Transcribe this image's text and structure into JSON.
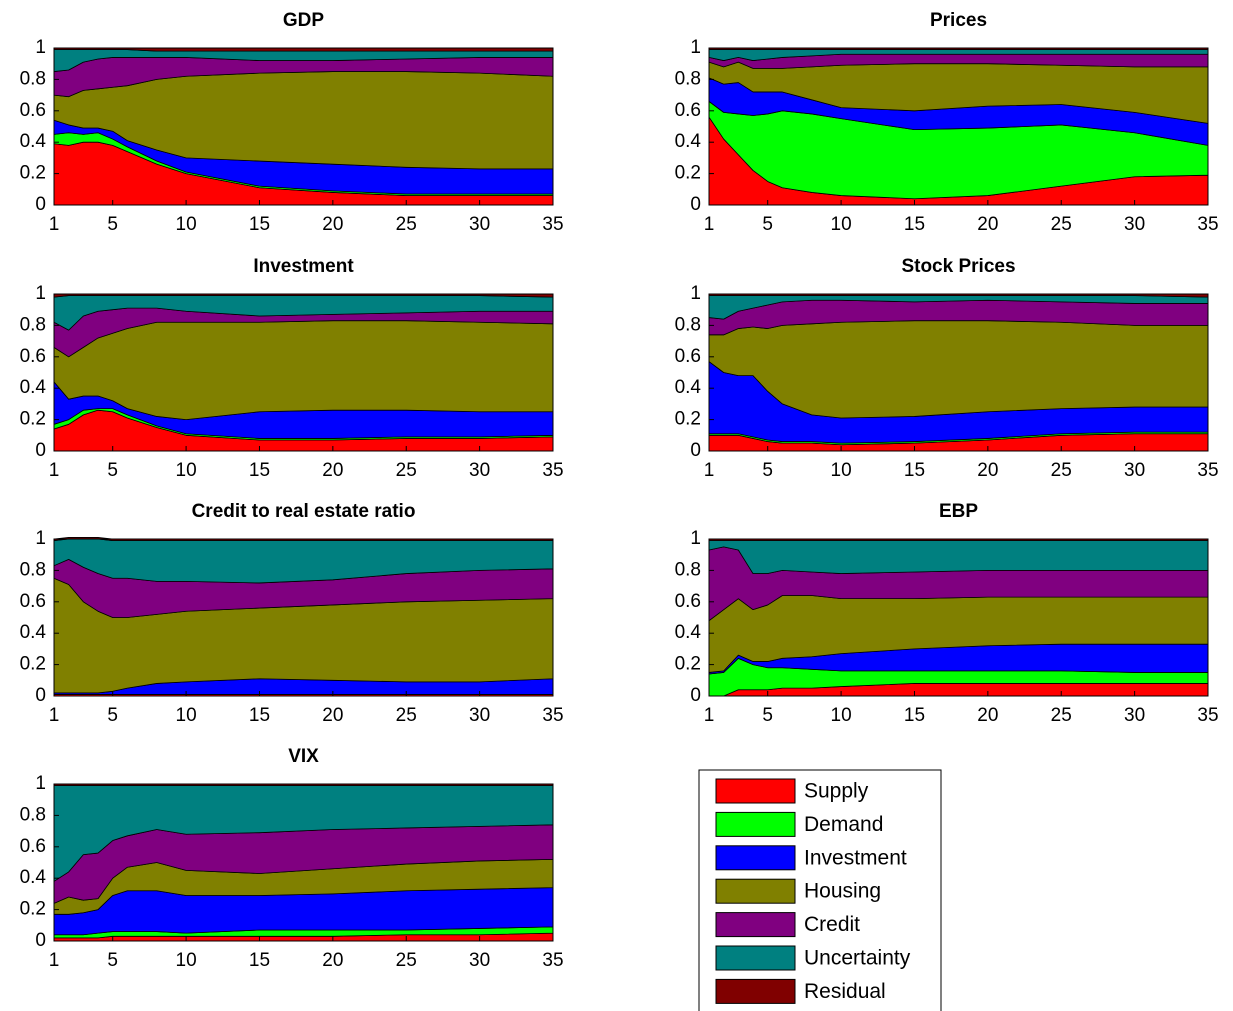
{
  "chart_data": [
    {
      "type": "area",
      "title": "GDP",
      "x": [
        1,
        2,
        3,
        4,
        5,
        6,
        8,
        10,
        15,
        20,
        25,
        30,
        35
      ],
      "xlim": [
        1,
        35
      ],
      "ylim": [
        0,
        1
      ],
      "xticks": [
        1,
        5,
        10,
        15,
        20,
        25,
        30,
        35
      ],
      "yticks": [
        0,
        0.2,
        0.4,
        0.6,
        0.8,
        1
      ],
      "series": [
        {
          "values": [
            0.39,
            0.38,
            0.4,
            0.4,
            0.38,
            0.34,
            0.26,
            0.2,
            0.11,
            0.08,
            0.06,
            0.06,
            0.06
          ]
        },
        {
          "values": [
            0.06,
            0.08,
            0.05,
            0.06,
            0.04,
            0.03,
            0.02,
            0.01,
            0.01,
            0.01,
            0.01,
            0.01,
            0.01
          ]
        },
        {
          "values": [
            0.09,
            0.05,
            0.04,
            0.03,
            0.05,
            0.04,
            0.07,
            0.09,
            0.16,
            0.17,
            0.17,
            0.16,
            0.16
          ]
        },
        {
          "values": [
            0.16,
            0.18,
            0.24,
            0.25,
            0.28,
            0.35,
            0.45,
            0.52,
            0.56,
            0.59,
            0.61,
            0.61,
            0.59
          ]
        },
        {
          "values": [
            0.15,
            0.17,
            0.18,
            0.19,
            0.19,
            0.18,
            0.14,
            0.12,
            0.08,
            0.07,
            0.08,
            0.1,
            0.12
          ]
        },
        {
          "values": [
            0.14,
            0.13,
            0.08,
            0.06,
            0.05,
            0.05,
            0.04,
            0.04,
            0.06,
            0.06,
            0.05,
            0.04,
            0.04
          ]
        },
        {
          "values": [
            0.01,
            0.01,
            0.01,
            0.01,
            0.01,
            0.01,
            0.02,
            0.02,
            0.02,
            0.02,
            0.02,
            0.02,
            0.02
          ]
        }
      ]
    },
    {
      "type": "area",
      "title": "Prices",
      "x": [
        1,
        2,
        3,
        4,
        5,
        6,
        8,
        10,
        15,
        20,
        25,
        30,
        35
      ],
      "xlim": [
        1,
        35
      ],
      "ylim": [
        0,
        1
      ],
      "xticks": [
        1,
        5,
        10,
        15,
        20,
        25,
        30,
        35
      ],
      "yticks": [
        0,
        0.2,
        0.4,
        0.6,
        0.8,
        1
      ],
      "series": [
        {
          "values": [
            0.56,
            0.42,
            0.32,
            0.22,
            0.15,
            0.11,
            0.08,
            0.06,
            0.04,
            0.06,
            0.12,
            0.18,
            0.19
          ]
        },
        {
          "values": [
            0.1,
            0.17,
            0.26,
            0.35,
            0.43,
            0.49,
            0.5,
            0.49,
            0.44,
            0.43,
            0.39,
            0.28,
            0.19
          ]
        },
        {
          "values": [
            0.15,
            0.18,
            0.2,
            0.15,
            0.14,
            0.12,
            0.09,
            0.07,
            0.12,
            0.14,
            0.13,
            0.13,
            0.14
          ]
        },
        {
          "values": [
            0.1,
            0.11,
            0.13,
            0.15,
            0.15,
            0.15,
            0.21,
            0.27,
            0.3,
            0.27,
            0.25,
            0.29,
            0.36
          ]
        },
        {
          "values": [
            0.03,
            0.04,
            0.03,
            0.05,
            0.06,
            0.07,
            0.07,
            0.07,
            0.06,
            0.06,
            0.07,
            0.08,
            0.08
          ]
        },
        {
          "values": [
            0.05,
            0.07,
            0.05,
            0.07,
            0.06,
            0.05,
            0.04,
            0.03,
            0.03,
            0.03,
            0.03,
            0.03,
            0.03
          ]
        },
        {
          "values": [
            0.01,
            0.01,
            0.01,
            0.01,
            0.01,
            0.01,
            0.01,
            0.01,
            0.01,
            0.01,
            0.01,
            0.01,
            0.01
          ]
        }
      ]
    },
    {
      "type": "area",
      "title": "Investment",
      "x": [
        1,
        2,
        3,
        4,
        5,
        6,
        8,
        10,
        15,
        20,
        25,
        30,
        35
      ],
      "xlim": [
        1,
        35
      ],
      "ylim": [
        0,
        1
      ],
      "xticks": [
        1,
        5,
        10,
        15,
        20,
        25,
        30,
        35
      ],
      "yticks": [
        0,
        0.2,
        0.4,
        0.6,
        0.8,
        1
      ],
      "series": [
        {
          "values": [
            0.14,
            0.17,
            0.23,
            0.26,
            0.25,
            0.21,
            0.15,
            0.1,
            0.07,
            0.07,
            0.08,
            0.08,
            0.09
          ]
        },
        {
          "values": [
            0.03,
            0.03,
            0.03,
            0.01,
            0.02,
            0.02,
            0.01,
            0.01,
            0.01,
            0.01,
            0.01,
            0.01,
            0.01
          ]
        },
        {
          "values": [
            0.27,
            0.13,
            0.09,
            0.08,
            0.05,
            0.04,
            0.06,
            0.09,
            0.17,
            0.18,
            0.17,
            0.16,
            0.15
          ]
        },
        {
          "values": [
            0.22,
            0.27,
            0.31,
            0.37,
            0.43,
            0.51,
            0.6,
            0.62,
            0.57,
            0.57,
            0.57,
            0.57,
            0.56
          ]
        },
        {
          "values": [
            0.16,
            0.17,
            0.2,
            0.17,
            0.15,
            0.13,
            0.09,
            0.07,
            0.04,
            0.04,
            0.05,
            0.07,
            0.08
          ]
        },
        {
          "values": [
            0.16,
            0.22,
            0.13,
            0.1,
            0.09,
            0.08,
            0.08,
            0.1,
            0.13,
            0.12,
            0.11,
            0.1,
            0.09
          ]
        },
        {
          "values": [
            0.02,
            0.01,
            0.01,
            0.01,
            0.01,
            0.01,
            0.01,
            0.01,
            0.01,
            0.01,
            0.01,
            0.01,
            0.02
          ]
        }
      ]
    },
    {
      "type": "area",
      "title": "Stock Prices",
      "x": [
        1,
        2,
        3,
        4,
        5,
        6,
        8,
        10,
        15,
        20,
        25,
        30,
        35
      ],
      "xlim": [
        1,
        35
      ],
      "ylim": [
        0,
        1
      ],
      "xticks": [
        1,
        5,
        10,
        15,
        20,
        25,
        30,
        35
      ],
      "yticks": [
        0,
        0.2,
        0.4,
        0.6,
        0.8,
        1
      ],
      "series": [
        {
          "values": [
            0.1,
            0.1,
            0.1,
            0.08,
            0.06,
            0.05,
            0.05,
            0.04,
            0.05,
            0.07,
            0.1,
            0.11,
            0.11
          ]
        },
        {
          "values": [
            0.01,
            0.01,
            0.01,
            0.01,
            0.01,
            0.01,
            0.01,
            0.01,
            0.01,
            0.01,
            0.01,
            0.01,
            0.01
          ]
        },
        {
          "values": [
            0.46,
            0.39,
            0.37,
            0.39,
            0.31,
            0.24,
            0.17,
            0.16,
            0.16,
            0.17,
            0.16,
            0.16,
            0.16
          ]
        },
        {
          "values": [
            0.17,
            0.24,
            0.3,
            0.31,
            0.4,
            0.5,
            0.58,
            0.61,
            0.61,
            0.58,
            0.55,
            0.52,
            0.52
          ]
        },
        {
          "values": [
            0.11,
            0.1,
            0.11,
            0.12,
            0.15,
            0.15,
            0.15,
            0.14,
            0.12,
            0.13,
            0.13,
            0.14,
            0.14
          ]
        },
        {
          "values": [
            0.14,
            0.15,
            0.1,
            0.08,
            0.06,
            0.04,
            0.03,
            0.03,
            0.04,
            0.03,
            0.04,
            0.05,
            0.04
          ]
        },
        {
          "values": [
            0.01,
            0.01,
            0.01,
            0.01,
            0.01,
            0.01,
            0.01,
            0.01,
            0.01,
            0.01,
            0.01,
            0.01,
            0.02
          ]
        }
      ]
    },
    {
      "type": "area",
      "title": "Credit to real estate ratio",
      "x": [
        1,
        2,
        3,
        4,
        5,
        6,
        8,
        10,
        15,
        20,
        25,
        30,
        35
      ],
      "xlim": [
        1,
        35
      ],
      "ylim": [
        0,
        1
      ],
      "xticks": [
        1,
        5,
        10,
        15,
        20,
        25,
        30,
        35
      ],
      "yticks": [
        0,
        0.2,
        0.4,
        0.6,
        0.8,
        1
      ],
      "series": [
        {
          "values": [
            0.01,
            0.01,
            0.01,
            0.01,
            0.01,
            0.01,
            0.01,
            0.01,
            0.01,
            0.01,
            0.01,
            0.01,
            0.01
          ]
        },
        {
          "values": [
            0,
            0,
            0,
            0,
            0,
            0,
            0,
            0,
            0,
            0,
            0,
            0,
            0
          ]
        },
        {
          "values": [
            0.01,
            0.01,
            0.01,
            0.01,
            0.02,
            0.04,
            0.07,
            0.08,
            0.1,
            0.09,
            0.08,
            0.08,
            0.1
          ]
        },
        {
          "values": [
            0.73,
            0.69,
            0.58,
            0.52,
            0.47,
            0.45,
            0.44,
            0.45,
            0.45,
            0.48,
            0.51,
            0.52,
            0.51
          ]
        },
        {
          "values": [
            0.08,
            0.16,
            0.22,
            0.24,
            0.25,
            0.25,
            0.21,
            0.19,
            0.16,
            0.16,
            0.18,
            0.19,
            0.19
          ]
        },
        {
          "values": [
            0.16,
            0.13,
            0.18,
            0.22,
            0.24,
            0.24,
            0.26,
            0.26,
            0.27,
            0.25,
            0.21,
            0.19,
            0.18
          ]
        },
        {
          "values": [
            0.01,
            0.01,
            0.01,
            0.01,
            0.01,
            0.01,
            0.01,
            0.01,
            0.01,
            0.01,
            0.01,
            0.01,
            0.01
          ]
        }
      ]
    },
    {
      "type": "area",
      "title": "EBP",
      "x": [
        1,
        2,
        3,
        4,
        5,
        6,
        8,
        10,
        15,
        20,
        25,
        30,
        35
      ],
      "xlim": [
        1,
        35
      ],
      "ylim": [
        0,
        1
      ],
      "xticks": [
        1,
        5,
        10,
        15,
        20,
        25,
        30,
        35
      ],
      "yticks": [
        0,
        0.2,
        0.4,
        0.6,
        0.8,
        1
      ],
      "series": [
        {
          "values": [
            0,
            0,
            0.04,
            0.04,
            0.04,
            0.05,
            0.05,
            0.06,
            0.08,
            0.08,
            0.08,
            0.08,
            0.08
          ]
        },
        {
          "values": [
            0.14,
            0.15,
            0.2,
            0.16,
            0.14,
            0.13,
            0.12,
            0.1,
            0.08,
            0.08,
            0.08,
            0.07,
            0.07
          ]
        },
        {
          "values": [
            0.01,
            0.01,
            0.02,
            0.02,
            0.04,
            0.06,
            0.08,
            0.11,
            0.14,
            0.16,
            0.17,
            0.18,
            0.18
          ]
        },
        {
          "values": [
            0.33,
            0.39,
            0.36,
            0.33,
            0.36,
            0.4,
            0.39,
            0.35,
            0.32,
            0.31,
            0.3,
            0.3,
            0.3
          ]
        },
        {
          "values": [
            0.45,
            0.4,
            0.31,
            0.23,
            0.2,
            0.16,
            0.15,
            0.16,
            0.17,
            0.17,
            0.17,
            0.17,
            0.17
          ]
        },
        {
          "values": [
            0.06,
            0.04,
            0.06,
            0.21,
            0.21,
            0.19,
            0.2,
            0.21,
            0.2,
            0.19,
            0.19,
            0.19,
            0.19
          ]
        },
        {
          "values": [
            0.01,
            0.01,
            0.01,
            0.01,
            0.01,
            0.01,
            0.01,
            0.01,
            0.01,
            0.01,
            0.01,
            0.01,
            0.01
          ]
        }
      ]
    },
    {
      "type": "area",
      "title": "VIX",
      "x": [
        1,
        2,
        3,
        4,
        5,
        6,
        8,
        10,
        15,
        20,
        25,
        30,
        35
      ],
      "xlim": [
        1,
        35
      ],
      "ylim": [
        0,
        1
      ],
      "xticks": [
        1,
        5,
        10,
        15,
        20,
        25,
        30,
        35
      ],
      "yticks": [
        0,
        0.2,
        0.4,
        0.6,
        0.8,
        1
      ],
      "series": [
        {
          "values": [
            0.02,
            0.02,
            0.02,
            0.02,
            0.03,
            0.03,
            0.03,
            0.03,
            0.03,
            0.03,
            0.04,
            0.04,
            0.05
          ]
        },
        {
          "values": [
            0.02,
            0.02,
            0.02,
            0.03,
            0.03,
            0.03,
            0.03,
            0.02,
            0.04,
            0.04,
            0.03,
            0.04,
            0.04
          ]
        },
        {
          "values": [
            0.13,
            0.13,
            0.14,
            0.15,
            0.23,
            0.26,
            0.26,
            0.24,
            0.22,
            0.23,
            0.25,
            0.25,
            0.25
          ]
        },
        {
          "values": [
            0.07,
            0.11,
            0.08,
            0.07,
            0.11,
            0.15,
            0.18,
            0.16,
            0.14,
            0.16,
            0.17,
            0.18,
            0.18
          ]
        },
        {
          "values": [
            0.14,
            0.16,
            0.29,
            0.29,
            0.24,
            0.2,
            0.21,
            0.23,
            0.26,
            0.25,
            0.23,
            0.22,
            0.22
          ]
        },
        {
          "values": [
            0.61,
            0.55,
            0.44,
            0.43,
            0.35,
            0.32,
            0.28,
            0.31,
            0.3,
            0.28,
            0.27,
            0.26,
            0.25
          ]
        },
        {
          "values": [
            0.01,
            0.01,
            0.01,
            0.01,
            0.01,
            0.01,
            0.01,
            0.01,
            0.01,
            0.01,
            0.01,
            0.01,
            0.01
          ]
        }
      ]
    }
  ],
  "legend": {
    "entries": [
      {
        "name": "Supply",
        "color": "#ff0000"
      },
      {
        "name": "Demand",
        "color": "#00ff00"
      },
      {
        "name": "Investment",
        "color": "#0000ff"
      },
      {
        "name": "Housing",
        "color": "#808000"
      },
      {
        "name": "Credit",
        "color": "#800080"
      },
      {
        "name": "Uncertainty",
        "color": "#008080"
      },
      {
        "name": "Residual",
        "color": "#800000"
      }
    ]
  }
}
